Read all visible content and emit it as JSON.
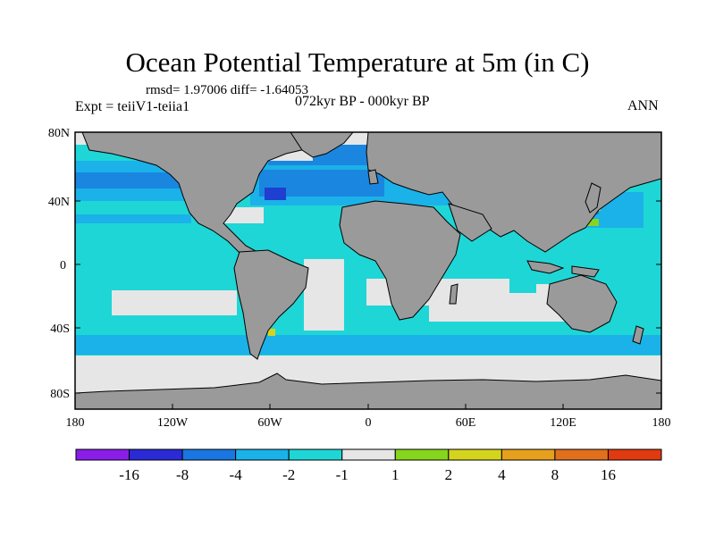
{
  "title": "Ocean Potential Temperature at 5m (in C)",
  "stats": "rmsd= 1.97006 diff= -1.64053",
  "experiment": "Expt = teiiV1-teiia1",
  "period": "072kyr BP - 000kyr BP",
  "season": "ANN",
  "map": {
    "lat_ticks": [
      "80N",
      "40N",
      "0",
      "40S",
      "80S"
    ],
    "lon_ticks": [
      "180",
      "120W",
      "60W",
      "0",
      "60E",
      "120E",
      "180"
    ],
    "colors": {
      "land": "#9a9a9a",
      "ocean_base": "#1fd6d6",
      "light": "#e6e6e6",
      "minus2": "#1ab2e8",
      "minus4": "#1a86e0",
      "minus8": "#1f3fd0",
      "plus1": "#86d61e",
      "plus2": "#d4d41e"
    }
  },
  "colorbar": {
    "colors": [
      "#8a1ee8",
      "#2a2ad6",
      "#1a76e0",
      "#1ab2e8",
      "#1fd6d6",
      "#e6e6e6",
      "#86d61e",
      "#d4d41e",
      "#e6a01e",
      "#e0701e",
      "#e03a10"
    ],
    "labels": [
      "-16",
      "-8",
      "-4",
      "-2",
      "-1",
      "1",
      "2",
      "4",
      "8",
      "16"
    ]
  }
}
